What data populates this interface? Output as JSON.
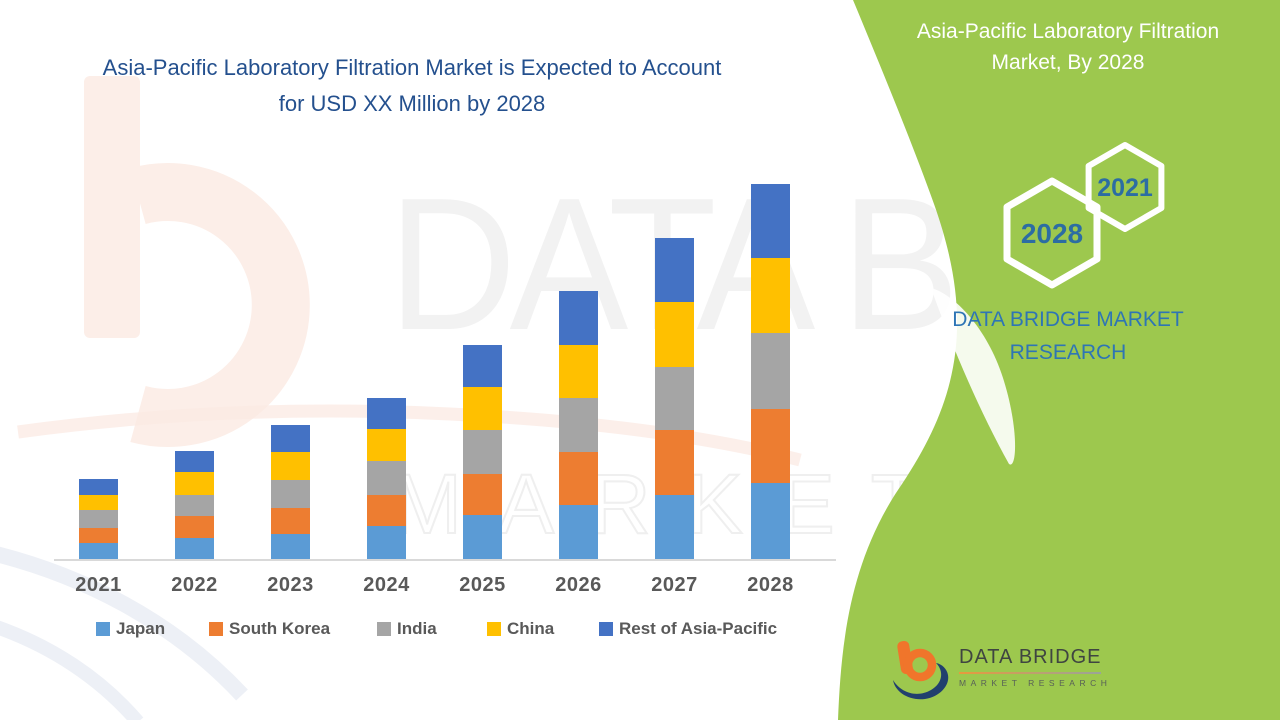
{
  "header": {
    "title_line1": "Asia-Pacific Laboratory Filtration Market is Expected to Account",
    "title_line2": "for USD XX Million by 2028"
  },
  "side_panel": {
    "heading_line1": "Asia-Pacific Laboratory Filtration",
    "heading_line2": "Market, By 2028",
    "hexagon_front_label": "2028",
    "hexagon_back_label": "2021",
    "brand_line1": "DATA BRIDGE MARKET",
    "brand_line2": "RESEARCH"
  },
  "watermark": {
    "line1": "DATA BRIDGE",
    "line2": "MARKET RESEARCH"
  },
  "footer_logo": {
    "name_line1": "DATA BRIDGE",
    "name_line2": "MARKET RESEARCH"
  },
  "chart_data": {
    "type": "bar",
    "stacked": true,
    "title": "Asia-Pacific Laboratory Filtration Market is Expected to Account for USD XX Million by 2028",
    "xlabel": "",
    "ylabel": "",
    "value_axis": "hidden (actual figures masked as XX in source infographic; values below are relative heights)",
    "legend_position": "bottom",
    "categories": [
      "2021",
      "2022",
      "2023",
      "2024",
      "2025",
      "2026",
      "2027",
      "2028"
    ],
    "series": [
      {
        "name": "Japan",
        "color": "#5B9BD5",
        "values": [
          17,
          22,
          26,
          34,
          45,
          55,
          65,
          77
        ]
      },
      {
        "name": "South Korea",
        "color": "#ED7D31",
        "values": [
          15,
          22,
          26,
          31,
          41,
          53,
          65,
          74
        ]
      },
      {
        "name": "India",
        "color": "#A5A5A5",
        "values": [
          18,
          21,
          28,
          34,
          44,
          54,
          63,
          76
        ]
      },
      {
        "name": "China",
        "color": "#FFC000",
        "values": [
          15,
          23,
          28,
          32,
          43,
          53,
          65,
          75
        ]
      },
      {
        "name": "Rest of Asia-Pacific",
        "color": "#4472C4",
        "values": [
          16,
          21,
          27,
          31,
          42,
          54,
          64,
          74
        ]
      }
    ],
    "totals_relative": [
      81,
      109,
      135,
      162,
      215,
      269,
      322,
      376
    ]
  },
  "colors": {
    "panel_green": "#9dc84e",
    "title_blue": "#24508e",
    "brand_blue": "#2e75b5",
    "hex_year_blue": "#2c6da3",
    "axis_text_gray": "#595959",
    "watermark_peach": "#fceee8",
    "logo_orange": "#f0752b",
    "logo_navy": "#21406e"
  }
}
